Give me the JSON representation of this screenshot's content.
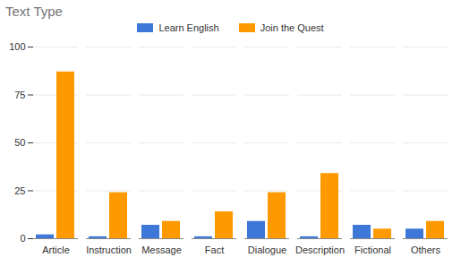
{
  "chart_data": {
    "type": "bar",
    "title": "Text Type",
    "categories": [
      "Article",
      "Instruction",
      "Message",
      "Fact",
      "Dialogue",
      "Description",
      "Fictional",
      "Others"
    ],
    "series": [
      {
        "name": "Learn English",
        "color": "#3d78d8",
        "values": [
          2,
          1,
          7,
          1,
          9,
          1,
          7,
          5
        ]
      },
      {
        "name": "Join the Quest",
        "color": "#ff9900",
        "values": [
          87,
          24,
          9,
          14,
          24,
          34,
          5,
          9
        ]
      }
    ],
    "ylim": [
      0,
      100
    ],
    "yticks": [
      0,
      25,
      50,
      75,
      100
    ],
    "grid": true,
    "legend": "top"
  }
}
